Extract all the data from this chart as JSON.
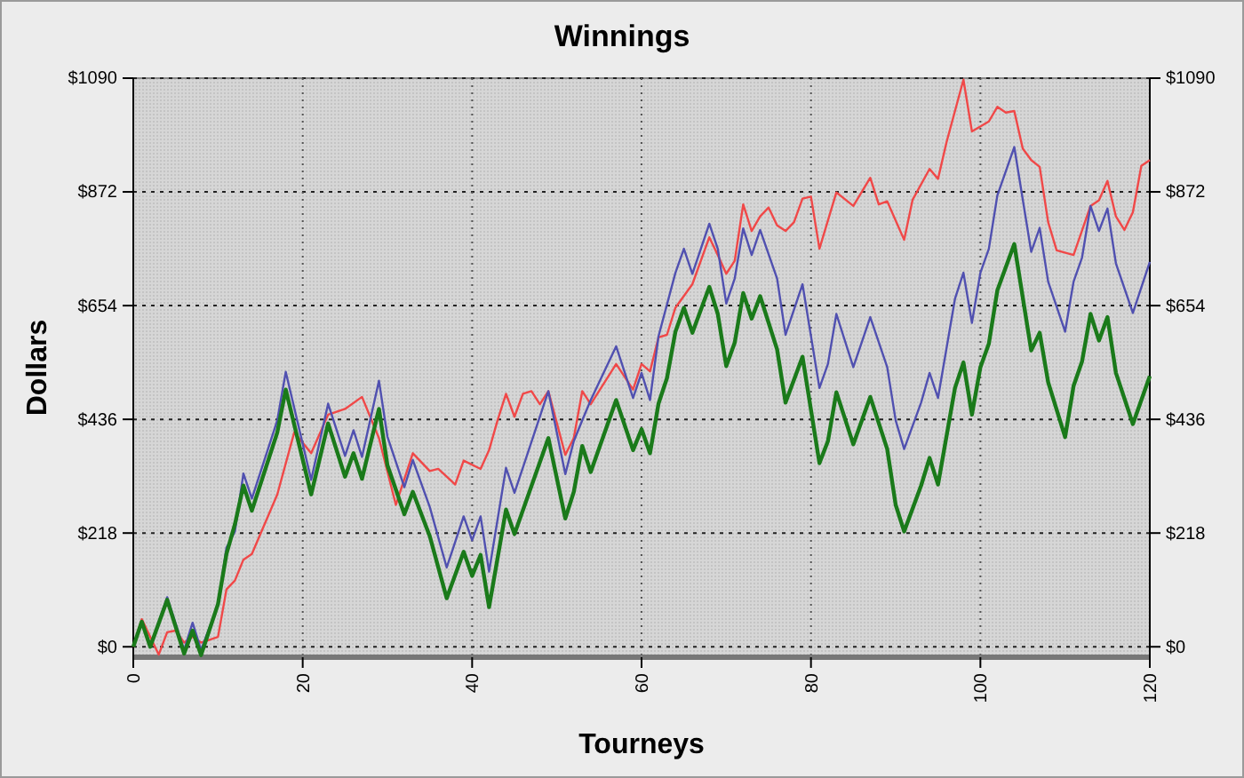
{
  "chart_data": {
    "type": "line",
    "title": "Winnings",
    "xlabel": "Tourneys",
    "ylabel": "Dollars",
    "xlim": [
      0,
      120
    ],
    "xticks": [
      0,
      20,
      40,
      60,
      80,
      100,
      120
    ],
    "ylim": [
      -20,
      1090
    ],
    "yticks": [
      {
        "value": 0,
        "label": "$0"
      },
      {
        "value": 218,
        "label": "$218"
      },
      {
        "value": 436,
        "label": "$436"
      },
      {
        "value": 654,
        "label": "$654"
      },
      {
        "value": 872,
        "label": "$872"
      },
      {
        "value": 1090,
        "label": "$1090"
      }
    ],
    "y2lim": [
      -20,
      1090
    ],
    "y2ticks": [
      {
        "value": 0,
        "label": "$0"
      },
      {
        "value": 218,
        "label": "$218"
      },
      {
        "value": 436,
        "label": "$436"
      },
      {
        "value": 654,
        "label": "$654"
      },
      {
        "value": 872,
        "label": "$872"
      },
      {
        "value": 1090,
        "label": "$1090"
      }
    ],
    "grid": true,
    "line_style": "solid",
    "marker": "none",
    "series": [
      {
        "color": "#f04848",
        "x": [
          0,
          1,
          3,
          4,
          5,
          6,
          7,
          8,
          10,
          11,
          12,
          13,
          14,
          17,
          19,
          21,
          23,
          25,
          27,
          29,
          31,
          33,
          35,
          36,
          38,
          39,
          41,
          42,
          43,
          44,
          45,
          46,
          47,
          48,
          49,
          51,
          52,
          53,
          54,
          57,
          59,
          60,
          61,
          62,
          63,
          64,
          66,
          68,
          69,
          70,
          71,
          72,
          73,
          74,
          75,
          76,
          77,
          78,
          79,
          80,
          81,
          83,
          85,
          87,
          88,
          89,
          91,
          92,
          94,
          95,
          96,
          98,
          99,
          101,
          102,
          103,
          104,
          105,
          106,
          107,
          108,
          109,
          111,
          113,
          114,
          115,
          116,
          117,
          118,
          119,
          120
        ],
        "values": [
          0,
          53,
          -15,
          28,
          31,
          8,
          19,
          8,
          19,
          110,
          127,
          167,
          178,
          292,
          411,
          371,
          445,
          456,
          479,
          400,
          272,
          371,
          337,
          341,
          311,
          357,
          341,
          377,
          434,
          485,
          441,
          485,
          490,
          465,
          490,
          368,
          400,
          490,
          465,
          542,
          493,
          542,
          528,
          593,
          598,
          650,
          695,
          785,
          751,
          715,
          740,
          848,
          797,
          825,
          842,
          808,
          797,
          814,
          859,
          863,
          763,
          871,
          845,
          899,
          848,
          854,
          780,
          857,
          916,
          897,
          967,
          1087,
          988,
          1007,
          1035,
          1024,
          1027,
          955,
          933,
          920,
          814,
          760,
          751,
          845,
          856,
          893,
          825,
          799,
          833,
          922,
          933
        ]
      },
      {
        "color": "#5050b0",
        "x": [
          2,
          4,
          6,
          7,
          8,
          10,
          11,
          12,
          13,
          14,
          17,
          18,
          21,
          23,
          25,
          26,
          27,
          29,
          30,
          32,
          33,
          35,
          37,
          39,
          40,
          41,
          42,
          44,
          45,
          49,
          51,
          52,
          53,
          54,
          57,
          59,
          60,
          61,
          62,
          64,
          65,
          66,
          68,
          69,
          70,
          71,
          72,
          73,
          74,
          76,
          77,
          79,
          81,
          82,
          83,
          85,
          87,
          89,
          90,
          91,
          93,
          94,
          95,
          97,
          98,
          99,
          100,
          101,
          102,
          104,
          106,
          107,
          108,
          110,
          111,
          112,
          113,
          114,
          115,
          116,
          118,
          120
        ],
        "values": [
          0,
          95,
          -6,
          46,
          -6,
          80,
          190,
          221,
          332,
          284,
          434,
          527,
          320,
          466,
          366,
          415,
          364,
          510,
          403,
          306,
          358,
          268,
          152,
          250,
          204,
          250,
          144,
          343,
          295,
          490,
          331,
          394,
          434,
          473,
          576,
          477,
          525,
          473,
          595,
          717,
          763,
          715,
          811,
          763,
          658,
          706,
          802,
          751,
          799,
          706,
          598,
          695,
          496,
          542,
          638,
          536,
          632,
          536,
          434,
          379,
          468,
          525,
          477,
          667,
          717,
          621,
          717,
          763,
          865,
          958,
          757,
          803,
          700,
          604,
          700,
          746,
          845,
          797,
          840,
          735,
          640,
          738
        ]
      },
      {
        "color": "#1a7a1a",
        "x": [
          0,
          1,
          2,
          4,
          6,
          7,
          8,
          10,
          11,
          12,
          13,
          14,
          17,
          18,
          21,
          23,
          25,
          26,
          27,
          29,
          30,
          32,
          33,
          35,
          37,
          39,
          40,
          41,
          42,
          44,
          45,
          49,
          51,
          52,
          53,
          54,
          57,
          59,
          60,
          61,
          62,
          63,
          64,
          65,
          66,
          68,
          69,
          70,
          71,
          72,
          73,
          74,
          76,
          77,
          79,
          81,
          82,
          83,
          85,
          87,
          89,
          90,
          91,
          93,
          94,
          95,
          97,
          98,
          99,
          100,
          101,
          102,
          104,
          106,
          107,
          108,
          110,
          111,
          112,
          113,
          114,
          115,
          116,
          118,
          120
        ],
        "values": [
          0,
          48,
          0,
          90,
          -13,
          31,
          -16,
          82,
          178,
          235,
          309,
          261,
          411,
          493,
          292,
          428,
          326,
          371,
          322,
          456,
          348,
          254,
          297,
          212,
          93,
          182,
          136,
          176,
          76,
          263,
          216,
          400,
          246,
          297,
          385,
          335,
          473,
          377,
          417,
          371,
          466,
          515,
          604,
          650,
          602,
          690,
          638,
          538,
          583,
          678,
          629,
          672,
          570,
          468,
          556,
          352,
          394,
          488,
          388,
          479,
          379,
          272,
          221,
          309,
          362,
          311,
          496,
          545,
          445,
          536,
          581,
          683,
          772,
          568,
          602,
          507,
          402,
          500,
          547,
          638,
          587,
          632,
          525,
          427,
          519
        ]
      }
    ]
  }
}
